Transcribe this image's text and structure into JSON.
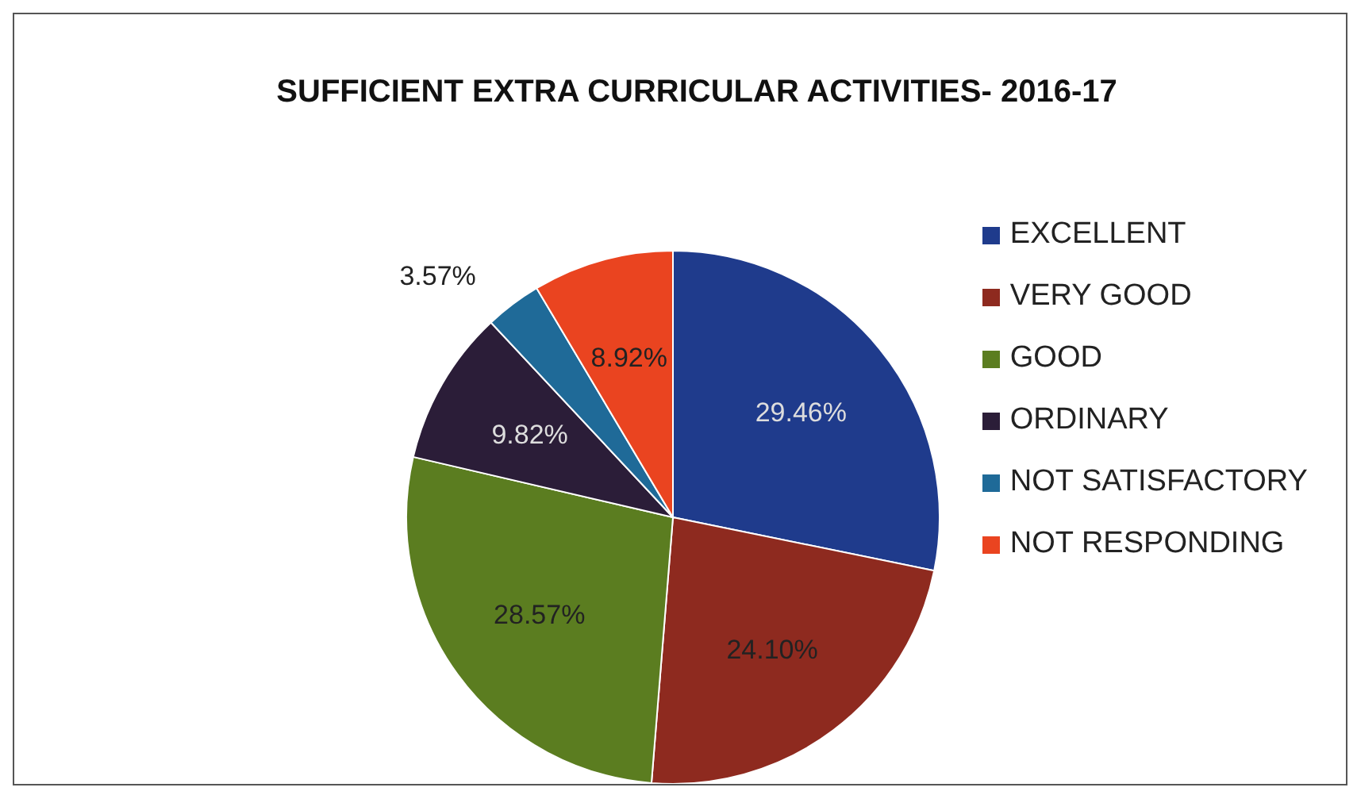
{
  "chart_data": {
    "type": "pie",
    "title": "SUFFICIENT EXTRA CURRICULAR ACTIVITIES- 2016-17",
    "categories": [
      "EXCELLENT",
      "VERY GOOD",
      "GOOD",
      "ORDINARY",
      "NOT SATISFACTORY",
      "NOT RESPONDING"
    ],
    "values": [
      29.46,
      24.1,
      28.57,
      9.82,
      3.57,
      8.92
    ],
    "value_labels": [
      "29.46%",
      "24.10%",
      "28.57%",
      "9.82%",
      "3.57%",
      "8.92%"
    ],
    "colors": [
      "#1f3b8c",
      "#8e2a1f",
      "#5b7d20",
      "#2b1d38",
      "#1f6a98",
      "#ea4420"
    ],
    "legend": "right"
  }
}
